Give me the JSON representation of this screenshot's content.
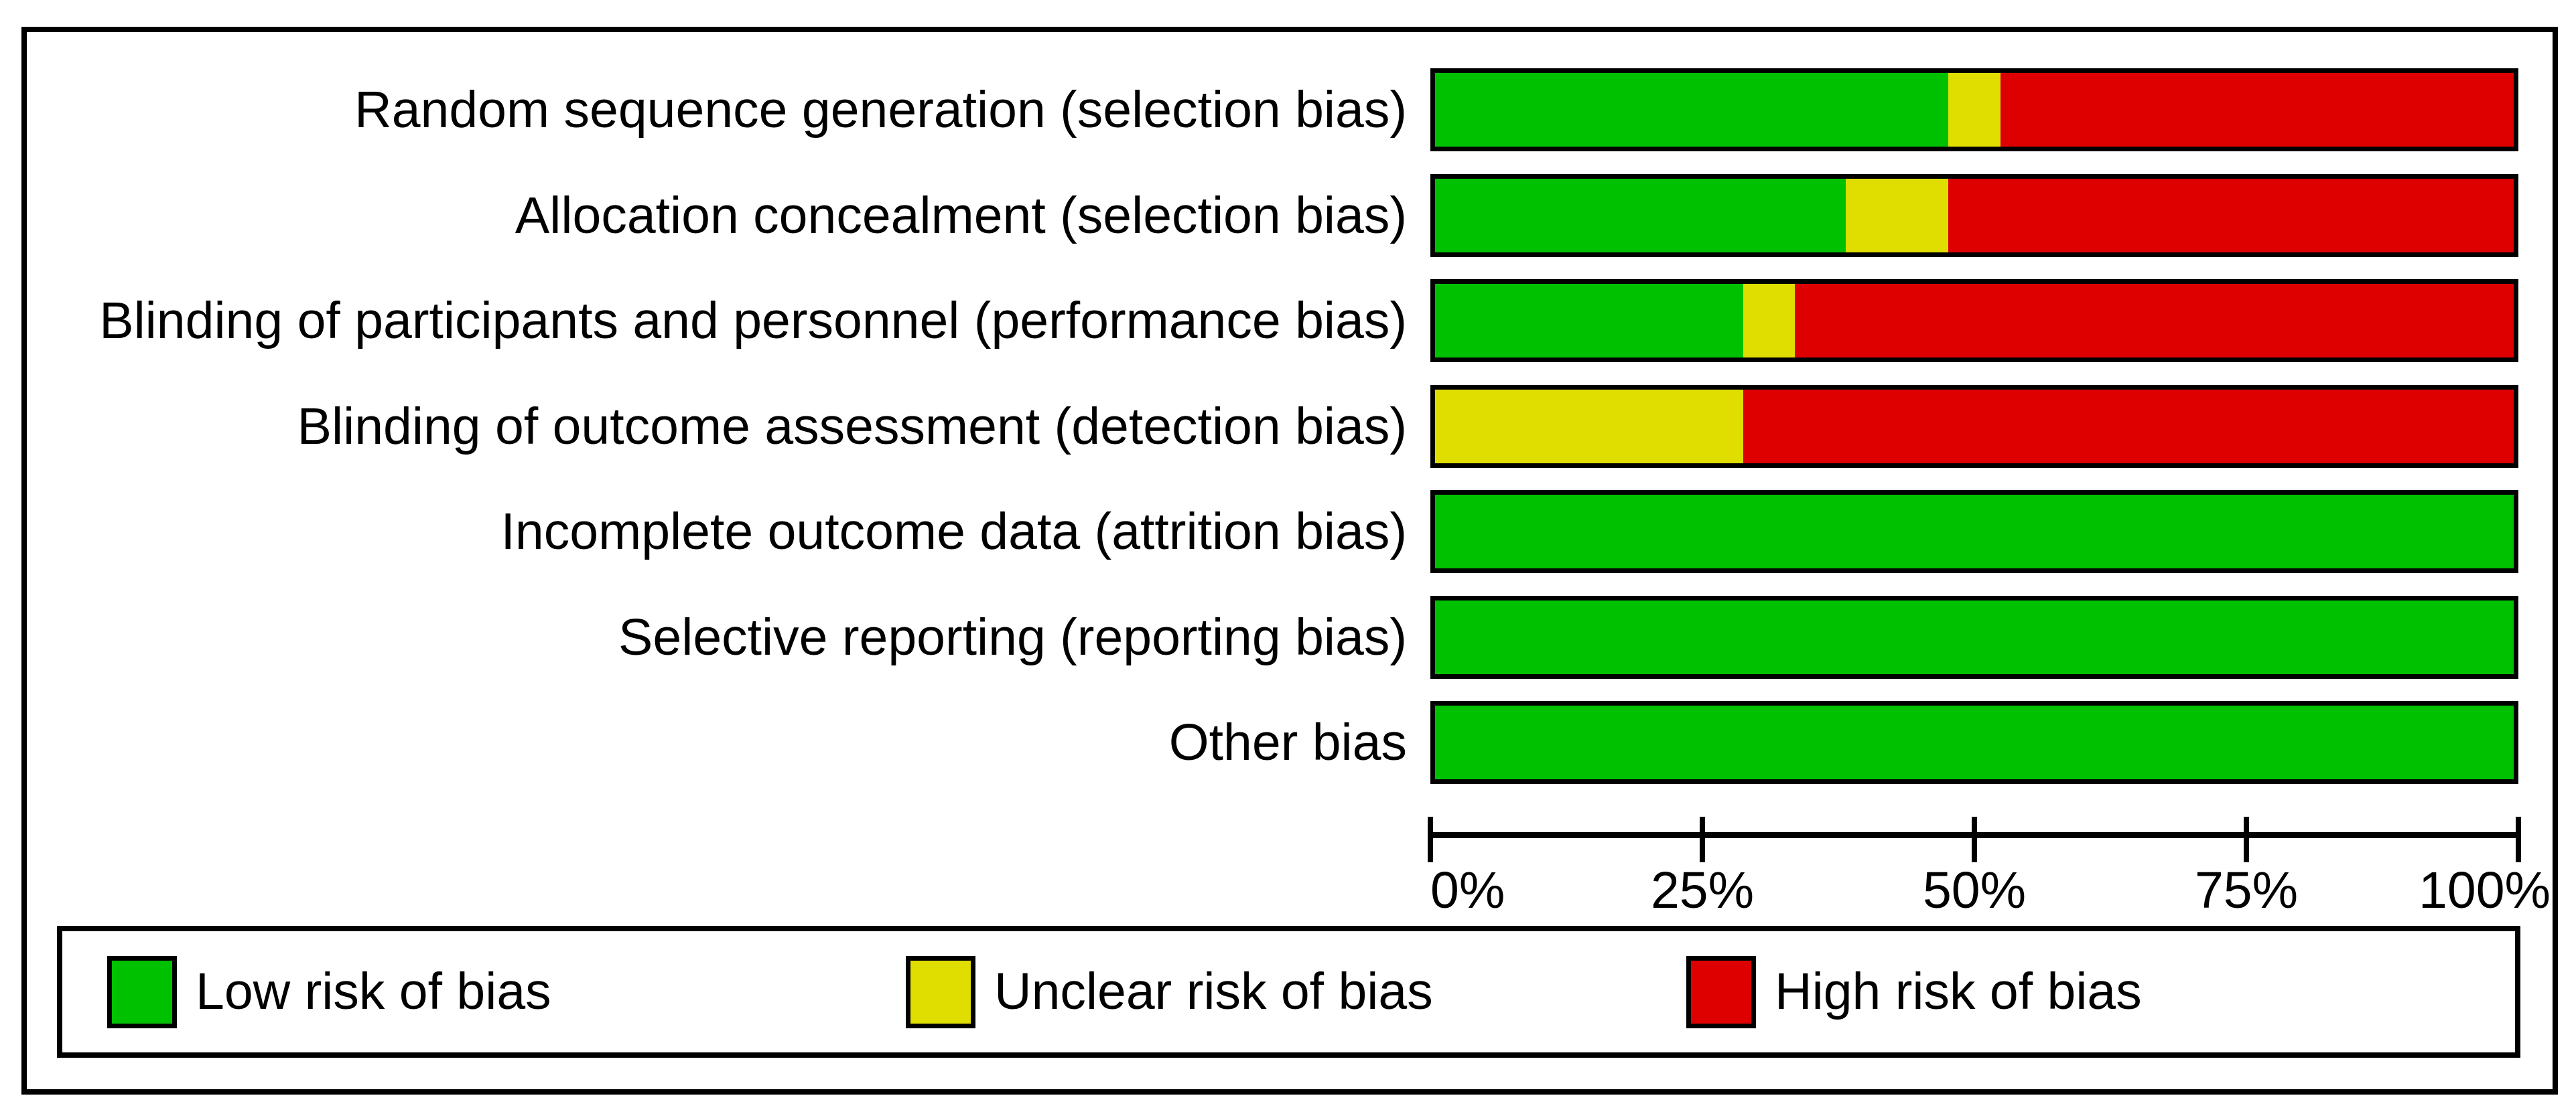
{
  "chart_data": {
    "type": "bar",
    "subtype": "stacked-horizontal",
    "categories": [
      "Random sequence generation (selection bias)",
      "Allocation concealment (selection bias)",
      "Blinding of participants and personnel (performance bias)",
      "Blinding of outcome assessment (detection bias)",
      "Incomplete outcome data (attrition bias)",
      "Selective reporting (reporting bias)",
      "Other bias"
    ],
    "series": [
      {
        "name": "Low risk of bias",
        "color": "#00C100",
        "values": [
          47.6,
          38.1,
          28.6,
          0,
          100,
          100,
          100
        ]
      },
      {
        "name": "Unclear risk of bias",
        "color": "#E0DD00",
        "values": [
          4.8,
          9.5,
          4.8,
          28.6,
          0,
          0,
          0
        ]
      },
      {
        "name": "High risk of bias",
        "color": "#DE0000",
        "values": [
          47.6,
          52.4,
          66.7,
          71.4,
          0,
          0,
          0
        ]
      }
    ],
    "xlabel": "",
    "ylabel": "",
    "x_axis": {
      "range": [
        0,
        100
      ],
      "tick_values": [
        0,
        25,
        50,
        75,
        100
      ],
      "tick_labels": [
        "0%",
        "25%",
        "50%",
        "75%",
        "100%"
      ]
    },
    "legend_position": "bottom",
    "grid": false,
    "colors": {
      "border": "#000000",
      "background": "#FFFFFF",
      "text": "#000000"
    }
  }
}
